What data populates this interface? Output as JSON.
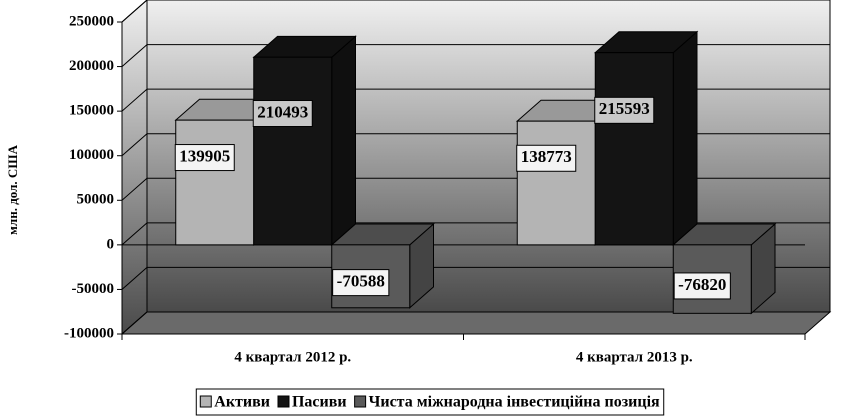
{
  "chart_data": {
    "type": "bar3d",
    "y_label": "млн. дол. США",
    "categories": [
      "4 квартал 2012 р.",
      "4 квартал 2013 р."
    ],
    "series": [
      {
        "name": "Активи",
        "color": "#b4b4b4",
        "label_background": "#f4f4f4",
        "values": [
          139905,
          138773
        ]
      },
      {
        "name": "Пасиви",
        "color": "#141414",
        "label_background": "#c8c8c8",
        "values": [
          210493,
          215593
        ]
      },
      {
        "name": "Чиста міжнародна інвестиційна позиція",
        "color": "#5a5a5a",
        "label_background": "#f4f4f4",
        "values": [
          -70588,
          -76820
        ]
      }
    ],
    "ylim": [
      -100000,
      250000
    ],
    "yticks": [
      -100000,
      -50000,
      0,
      50000,
      100000,
      150000,
      200000,
      250000
    ],
    "grid": true
  }
}
